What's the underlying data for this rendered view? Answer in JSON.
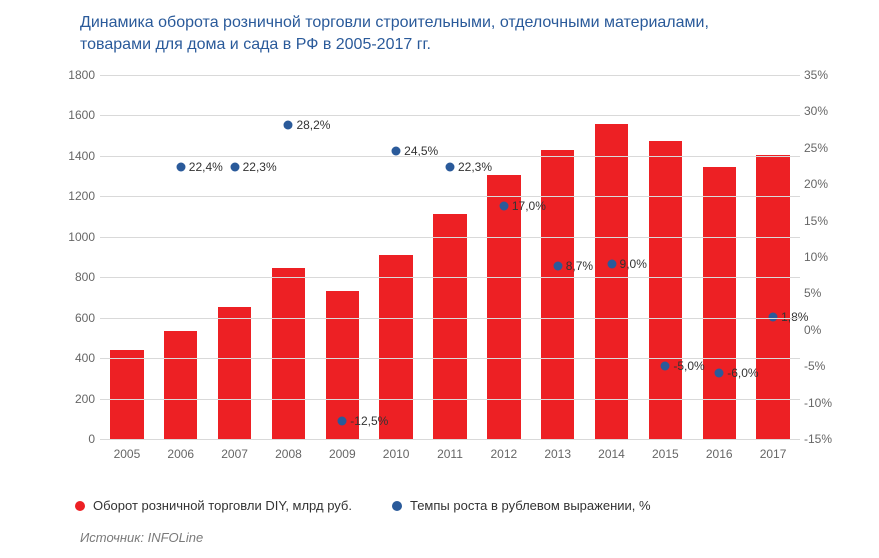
{
  "title": "Динамика оборота розничной торговли строительными, отделочными материалами, товарами для дома и сада в РФ в 2005-2017 гг.",
  "chart": {
    "type": "bar+scatter",
    "categories": [
      "2005",
      "2006",
      "2007",
      "2008",
      "2009",
      "2010",
      "2011",
      "2012",
      "2013",
      "2014",
      "2015",
      "2016",
      "2017"
    ],
    "bars": {
      "values": [
        440,
        535,
        655,
        845,
        730,
        910,
        1115,
        1305,
        1430,
        1560,
        1475,
        1345,
        1405
      ],
      "color": "#ed2024",
      "bar_width": 0.62
    },
    "scatter": {
      "values": [
        null,
        22.4,
        22.3,
        28.2,
        -12.5,
        24.5,
        22.3,
        17.0,
        8.7,
        9.0,
        -5.0,
        -6.0,
        1.8
      ],
      "labels": [
        null,
        "22,4%",
        "22,3%",
        "28,2%",
        "-12,5%",
        "24,5%",
        "22,3%",
        "17,0%",
        "8,7%",
        "9,0%",
        "-5,0%",
        "-6,0%",
        "1,8%"
      ],
      "marker_color": "#2a5a9a",
      "marker_size": 9
    },
    "y_left": {
      "min": 0,
      "max": 1800,
      "ticks": [
        0,
        200,
        400,
        600,
        800,
        1000,
        1200,
        1400,
        1600,
        1800
      ]
    },
    "y_right": {
      "min": -15,
      "max": 35,
      "ticks": [
        -15,
        -10,
        -5,
        0,
        5,
        10,
        15,
        20,
        25,
        30,
        35
      ]
    },
    "grid_color": "#d9d9d9",
    "axis_color": "#bfbfbf",
    "tick_color": "#666666",
    "title_color": "#2a5a9a",
    "title_fontsize": 16,
    "tick_fontsize": 12,
    "point_label_fontsize": 12,
    "background_color": "#ffffff"
  },
  "legend": {
    "bars": "Оборот розничной торговли DIY, млрд руб.",
    "scatter": "Темпы роста в рублевом выражении, %"
  },
  "source_prefix": "Источник: ",
  "source_name": "INFOLine"
}
